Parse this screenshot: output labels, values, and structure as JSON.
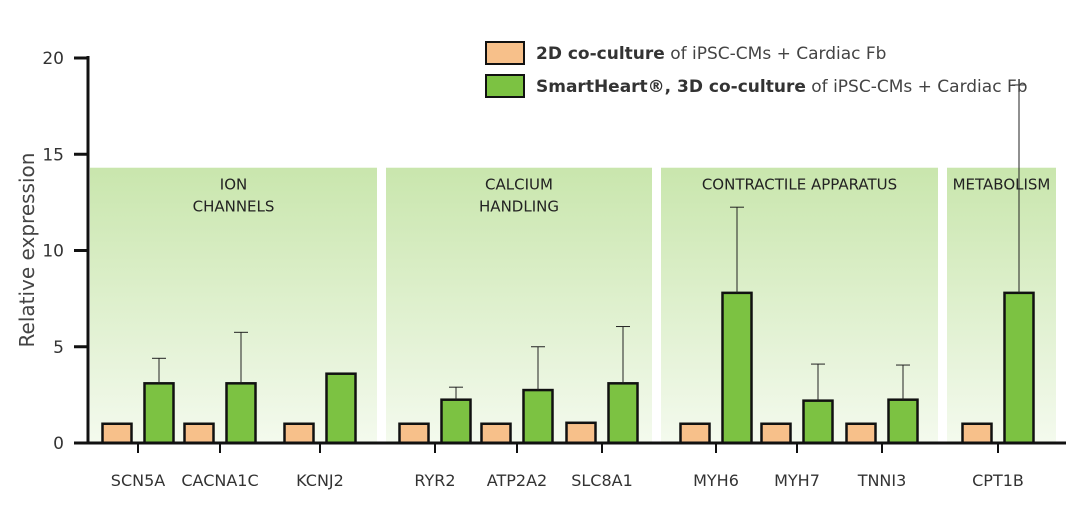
{
  "chart_data": {
    "type": "bar",
    "ylabel": "Relative expression",
    "ylim": [
      0,
      20
    ],
    "yticks": [
      0,
      5,
      10,
      15,
      20
    ],
    "grid": false,
    "legend_position": "top-right",
    "colors": {
      "2d": "#f7c08a",
      "3d": "#7cc242",
      "edge": "#111111",
      "group_bg_top": "#c9e6ad",
      "group_bg_bottom": "#f4faee"
    },
    "categories": [
      "SCN5A",
      "CACNA1C",
      "KCNJ2",
      "RYR2",
      "ATP2A2",
      "SLC8A1",
      "MYH6",
      "MYH7",
      "TNNI3",
      "CPT1B"
    ],
    "groups": [
      {
        "label_lines": [
          "ION",
          "CHANNELS"
        ],
        "categories": [
          "SCN5A",
          "CACNA1C",
          "KCNJ2"
        ]
      },
      {
        "label_lines": [
          "CALCIUM",
          "HANDLING"
        ],
        "categories": [
          "RYR2",
          "ATP2A2",
          "SLC8A1"
        ]
      },
      {
        "label_lines": [
          "CONTRACTILE APPARATUS"
        ],
        "categories": [
          "MYH6",
          "MYH7",
          "TNNI3"
        ]
      },
      {
        "label_lines": [
          "METABOLISM"
        ],
        "categories": [
          "CPT1B"
        ]
      }
    ],
    "group_bg_top_value": 14.3,
    "series": [
      {
        "key": "2d",
        "legend_bold": "2D co-culture",
        "legend_rest": " of iPSC-CMs + Cardiac Fb",
        "values": [
          1,
          1,
          1,
          1,
          1,
          1.05,
          1,
          1,
          1,
          1
        ],
        "errors": [
          0,
          0,
          0,
          0,
          0,
          0,
          0,
          0,
          0,
          0
        ]
      },
      {
        "key": "3d",
        "legend_bold": "SmartHeart®, 3D co-culture",
        "legend_rest": " of iPSC-CMs + Cardiac Fb",
        "values": [
          3.1,
          3.1,
          3.6,
          2.25,
          2.75,
          3.1,
          7.8,
          2.2,
          2.25,
          7.8
        ],
        "errors": [
          1.3,
          2.65,
          0,
          0.65,
          2.25,
          2.95,
          4.45,
          1.9,
          1.8,
          10.8
        ]
      }
    ]
  }
}
